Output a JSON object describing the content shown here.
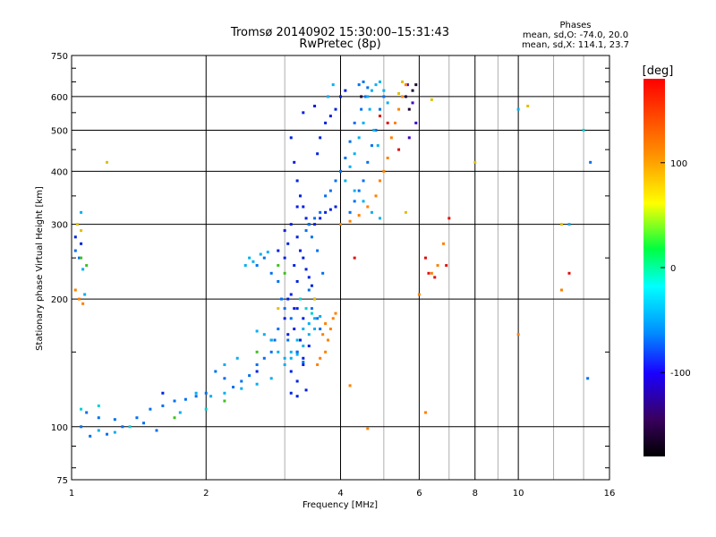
{
  "chart_data": {
    "type": "scatter",
    "title": "Tromsø 20140902 15:30:00–15:31:43",
    "subtitle": "RwPretec (8p)",
    "xlabel": "Frequency [MHz]",
    "ylabel": "Stationary phase Virtual Height [km]",
    "x_scale": "log",
    "y_scale": "log",
    "xlim": [
      1,
      16
    ],
    "ylim": [
      75,
      750
    ],
    "x_ticks": [
      1,
      2,
      4,
      6,
      8,
      10,
      16
    ],
    "x_tick_labels": [
      "1",
      "2",
      "4",
      "6",
      "8",
      "10",
      "16"
    ],
    "x_minor_ticks": [
      3,
      5,
      7,
      9,
      12,
      14
    ],
    "y_ticks": [
      75,
      100,
      200,
      300,
      400,
      500,
      600,
      750
    ],
    "y_tick_labels": [
      "75",
      "100",
      "200",
      "300",
      "400",
      "500",
      "600",
      "750"
    ],
    "y_minor_ticks": [
      80,
      90,
      150,
      250,
      350,
      450,
      550,
      650,
      700
    ],
    "grid": true,
    "stats": {
      "title": "Phases",
      "line1": "mean, sd,O: -74.0, 20.0",
      "line2": "mean, sd,X: 114.1, 23.7"
    },
    "colorbar": {
      "label": "[deg]",
      "range": [
        -180,
        180
      ],
      "ticks": [
        100,
        0,
        -100
      ],
      "tick_labels": [
        "100",
        "0",
        "-100"
      ]
    },
    "series": [
      {
        "phase": -155,
        "color": "#200030",
        "points": [
          [
            4.45,
            600
          ],
          [
            5.8,
            620
          ],
          [
            5.7,
            560
          ],
          [
            5.9,
            640
          ],
          [
            5.6,
            600
          ]
        ]
      },
      {
        "phase": -120,
        "color": "#4000c8",
        "points": [
          [
            5.8,
            580
          ],
          [
            5.9,
            520
          ],
          [
            5.7,
            480
          ],
          [
            5.65,
            640
          ]
        ]
      },
      {
        "phase": -95,
        "color": "#0020e0",
        "points": [
          [
            3.1,
            480
          ],
          [
            3.15,
            420
          ],
          [
            3.2,
            380
          ],
          [
            3.25,
            350
          ],
          [
            3.3,
            330
          ],
          [
            3.35,
            310
          ],
          [
            3.4,
            300
          ],
          [
            3.2,
            330
          ],
          [
            3.1,
            300
          ],
          [
            3.0,
            290
          ],
          [
            2.9,
            260
          ],
          [
            3.05,
            270
          ],
          [
            3.15,
            240
          ],
          [
            3.2,
            220
          ],
          [
            3.1,
            205
          ],
          [
            3.2,
            190
          ],
          [
            3.3,
            180
          ],
          [
            3.15,
            170
          ],
          [
            3.25,
            160
          ],
          [
            3.2,
            150
          ],
          [
            3.3,
            145
          ],
          [
            3.1,
            135
          ],
          [
            3.2,
            128
          ],
          [
            3.3,
            140
          ],
          [
            3.4,
            155
          ],
          [
            3.0,
            180
          ],
          [
            3.05,
            165
          ],
          [
            3.5,
            300
          ],
          [
            3.6,
            310
          ],
          [
            3.7,
            320
          ],
          [
            3.8,
            325
          ],
          [
            3.9,
            330
          ],
          [
            3.55,
            440
          ],
          [
            3.6,
            480
          ],
          [
            3.7,
            520
          ],
          [
            3.8,
            540
          ],
          [
            3.9,
            560
          ],
          [
            4.0,
            600
          ],
          [
            4.1,
            620
          ],
          [
            3.3,
            550
          ],
          [
            3.5,
            570
          ],
          [
            3.2,
            280
          ],
          [
            3.25,
            260
          ],
          [
            3.3,
            250
          ],
          [
            3.35,
            235
          ],
          [
            3.4,
            225
          ],
          [
            3.45,
            215
          ],
          [
            3.1,
            120
          ],
          [
            3.2,
            118
          ],
          [
            3.35,
            122
          ],
          [
            3.15,
            190
          ],
          [
            3.05,
            200
          ],
          [
            1.02,
            280
          ],
          [
            1.05,
            270
          ],
          [
            1.6,
            120
          ],
          [
            2.6,
            135
          ],
          [
            2.8,
            160
          ],
          [
            3.0,
            250
          ]
        ]
      },
      {
        "phase": -85,
        "color": "#0070f0",
        "points": [
          [
            2.6,
            240
          ],
          [
            2.7,
            250
          ],
          [
            2.8,
            230
          ],
          [
            2.9,
            220
          ],
          [
            2.95,
            200
          ],
          [
            3.0,
            190
          ],
          [
            3.1,
            180
          ],
          [
            3.05,
            160
          ],
          [
            3.2,
            150
          ],
          [
            3.3,
            142
          ],
          [
            2.9,
            170
          ],
          [
            2.85,
            160
          ],
          [
            2.8,
            150
          ],
          [
            2.7,
            145
          ],
          [
            2.6,
            140
          ],
          [
            2.5,
            132
          ],
          [
            2.4,
            128
          ],
          [
            2.3,
            124
          ],
          [
            2.2,
            130
          ],
          [
            2.1,
            135
          ],
          [
            2.0,
            120
          ],
          [
            1.9,
            118
          ],
          [
            1.8,
            116
          ],
          [
            1.7,
            115
          ],
          [
            1.6,
            112
          ],
          [
            1.5,
            110
          ],
          [
            1.4,
            105
          ],
          [
            1.3,
            100
          ],
          [
            1.2,
            96
          ],
          [
            1.1,
            95
          ],
          [
            1.05,
            100
          ],
          [
            1.08,
            108
          ],
          [
            1.15,
            105
          ],
          [
            1.25,
            104
          ],
          [
            1.45,
            102
          ],
          [
            1.55,
            98
          ],
          [
            4.2,
            320
          ],
          [
            4.3,
            340
          ],
          [
            4.4,
            360
          ],
          [
            4.5,
            380
          ],
          [
            4.6,
            420
          ],
          [
            4.7,
            460
          ],
          [
            4.8,
            500
          ],
          [
            4.9,
            560
          ],
          [
            5.0,
            600
          ],
          [
            4.4,
            640
          ],
          [
            4.5,
            650
          ],
          [
            4.6,
            630
          ],
          [
            4.3,
            520
          ],
          [
            4.2,
            470
          ],
          [
            4.1,
            430
          ],
          [
            4.0,
            400
          ],
          [
            3.9,
            380
          ],
          [
            3.8,
            360
          ],
          [
            3.7,
            350
          ],
          [
            4.45,
            560
          ],
          [
            4.55,
            600
          ],
          [
            3.4,
            300
          ],
          [
            3.5,
            310
          ],
          [
            3.6,
            320
          ],
          [
            3.35,
            290
          ],
          [
            3.45,
            280
          ],
          [
            3.55,
            260
          ],
          [
            3.65,
            230
          ],
          [
            3.4,
            210
          ],
          [
            3.5,
            200
          ],
          [
            3.45,
            190
          ],
          [
            3.55,
            180
          ],
          [
            3.6,
            170
          ],
          [
            1.02,
            260
          ],
          [
            1.04,
            250
          ],
          [
            14.5,
            420
          ],
          [
            14.3,
            130
          ]
        ]
      },
      {
        "phase": -70,
        "color": "#00b0f0",
        "points": [
          [
            2.05,
            118
          ],
          [
            2.2,
            120
          ],
          [
            2.4,
            123
          ],
          [
            2.6,
            126
          ],
          [
            2.8,
            130
          ],
          [
            3.0,
            140
          ],
          [
            3.1,
            150
          ],
          [
            3.2,
            160
          ],
          [
            3.3,
            170
          ],
          [
            3.4,
            175
          ],
          [
            3.5,
            180
          ],
          [
            3.6,
            182
          ],
          [
            3.5,
            170
          ],
          [
            3.4,
            165
          ],
          [
            3.3,
            155
          ],
          [
            3.2,
            148
          ],
          [
            3.1,
            145
          ],
          [
            3.0,
            145
          ],
          [
            2.9,
            150
          ],
          [
            2.8,
            160
          ],
          [
            2.7,
            165
          ],
          [
            2.6,
            168
          ],
          [
            2.55,
            245
          ],
          [
            2.65,
            255
          ],
          [
            2.75,
            258
          ],
          [
            2.5,
            250
          ],
          [
            2.45,
            240
          ],
          [
            4.6,
            600
          ],
          [
            4.7,
            620
          ],
          [
            4.8,
            640
          ],
          [
            4.9,
            650
          ],
          [
            5.0,
            620
          ],
          [
            5.1,
            580
          ],
          [
            4.5,
            520
          ],
          [
            4.4,
            480
          ],
          [
            4.3,
            440
          ],
          [
            4.2,
            410
          ],
          [
            4.1,
            380
          ],
          [
            4.3,
            360
          ],
          [
            4.5,
            340
          ],
          [
            4.7,
            320
          ],
          [
            4.9,
            310
          ],
          [
            4.65,
            560
          ],
          [
            4.75,
            500
          ],
          [
            4.85,
            460
          ],
          [
            3.75,
            600
          ],
          [
            3.85,
            640
          ],
          [
            1.05,
            320
          ],
          [
            1.06,
            235
          ],
          [
            1.07,
            205
          ],
          [
            2.2,
            140
          ],
          [
            2.35,
            145
          ],
          [
            1.9,
            120
          ],
          [
            1.75,
            108
          ],
          [
            1.25,
            97
          ],
          [
            1.15,
            98
          ],
          [
            10.0,
            560
          ],
          [
            13.0,
            300
          ]
        ]
      },
      {
        "phase": -40,
        "color": "#00d0d0",
        "points": [
          [
            1.05,
            110
          ],
          [
            1.15,
            112
          ],
          [
            1.35,
            100
          ],
          [
            3.25,
            200
          ],
          [
            3.35,
            190
          ],
          [
            3.45,
            185
          ],
          [
            2.0,
            110
          ],
          [
            14.0,
            500
          ]
        ]
      },
      {
        "phase": 40,
        "color": "#40c020",
        "points": [
          [
            1.05,
            250
          ],
          [
            1.08,
            240
          ],
          [
            2.9,
            240
          ],
          [
            3.0,
            230
          ],
          [
            1.7,
            105
          ],
          [
            2.2,
            115
          ],
          [
            2.6,
            150
          ]
        ]
      },
      {
        "phase": 90,
        "color": "#e0c000",
        "points": [
          [
            1.03,
            300
          ],
          [
            1.05,
            290
          ],
          [
            1.2,
            420
          ],
          [
            6.4,
            590
          ],
          [
            10.5,
            570
          ],
          [
            12.5,
            300
          ],
          [
            8.0,
            420
          ],
          [
            5.6,
            320
          ],
          [
            5.5,
            650
          ],
          [
            5.4,
            610
          ],
          [
            3.5,
            200
          ],
          [
            2.9,
            190
          ]
        ]
      },
      {
        "phase": 120,
        "color": "#ff8000",
        "points": [
          [
            4.0,
            300
          ],
          [
            4.2,
            305
          ],
          [
            4.4,
            315
          ],
          [
            4.6,
            330
          ],
          [
            4.8,
            350
          ],
          [
            4.9,
            380
          ],
          [
            5.0,
            400
          ],
          [
            5.1,
            430
          ],
          [
            5.2,
            480
          ],
          [
            5.3,
            520
          ],
          [
            5.4,
            560
          ],
          [
            5.5,
            600
          ],
          [
            5.6,
            640
          ],
          [
            3.6,
            145
          ],
          [
            3.7,
            150
          ],
          [
            3.75,
            160
          ],
          [
            3.8,
            170
          ],
          [
            3.85,
            180
          ],
          [
            3.9,
            185
          ],
          [
            3.7,
            175
          ],
          [
            3.65,
            165
          ],
          [
            3.55,
            140
          ],
          [
            1.02,
            210
          ],
          [
            1.04,
            200
          ],
          [
            1.06,
            195
          ],
          [
            6.4,
            230
          ],
          [
            6.6,
            240
          ],
          [
            6.8,
            270
          ],
          [
            12.5,
            210
          ],
          [
            10.0,
            165
          ],
          [
            6.0,
            205
          ],
          [
            4.2,
            125
          ],
          [
            4.6,
            99
          ],
          [
            6.2,
            108
          ]
        ]
      },
      {
        "phase": 160,
        "color": "#e01010",
        "points": [
          [
            6.3,
            230
          ],
          [
            6.5,
            225
          ],
          [
            6.9,
            240
          ],
          [
            4.9,
            540
          ],
          [
            5.1,
            520
          ],
          [
            5.4,
            450
          ],
          [
            7.0,
            310
          ],
          [
            6.2,
            250
          ],
          [
            13.0,
            230
          ],
          [
            4.3,
            250
          ]
        ]
      }
    ]
  }
}
